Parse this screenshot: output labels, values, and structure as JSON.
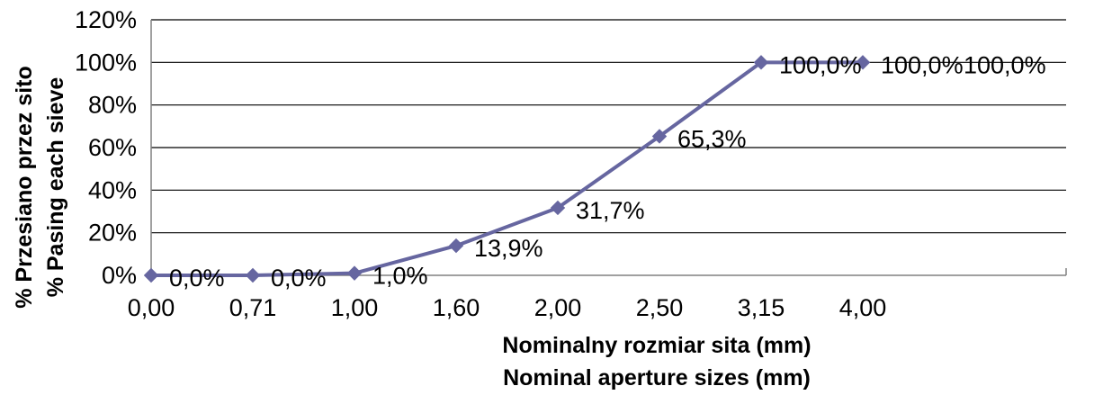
{
  "chart_data": {
    "type": "line",
    "categories": [
      "0,00",
      "0,71",
      "1,00",
      "1,60",
      "2,00",
      "2,50",
      "3,15",
      "4,00"
    ],
    "values": [
      0.0,
      0.0,
      1.0,
      13.9,
      31.7,
      65.3,
      100.0,
      100.0
    ],
    "data_labels": [
      "0,0%",
      "0,0%",
      "1,0%",
      "13,9%",
      "31,7%",
      "65,3%",
      "100,0%",
      "100,0%"
    ],
    "extra_overlap_label": "100,0%",
    "xlabel": [
      "Nominalny rozmiar sita (mm)",
      "Nominal aperture sizes (mm)"
    ],
    "ylabel": [
      "% Przesiano przez sito",
      "% Pasing each sieve"
    ],
    "ylim": [
      0,
      120
    ],
    "yticks": [
      "0%",
      "20%",
      "40%",
      "60%",
      "80%",
      "100%",
      "120%"
    ],
    "grid": true,
    "legend": "none",
    "colors": {
      "series": "#6666a0",
      "grid": "#000000",
      "axis": "#808080"
    }
  }
}
